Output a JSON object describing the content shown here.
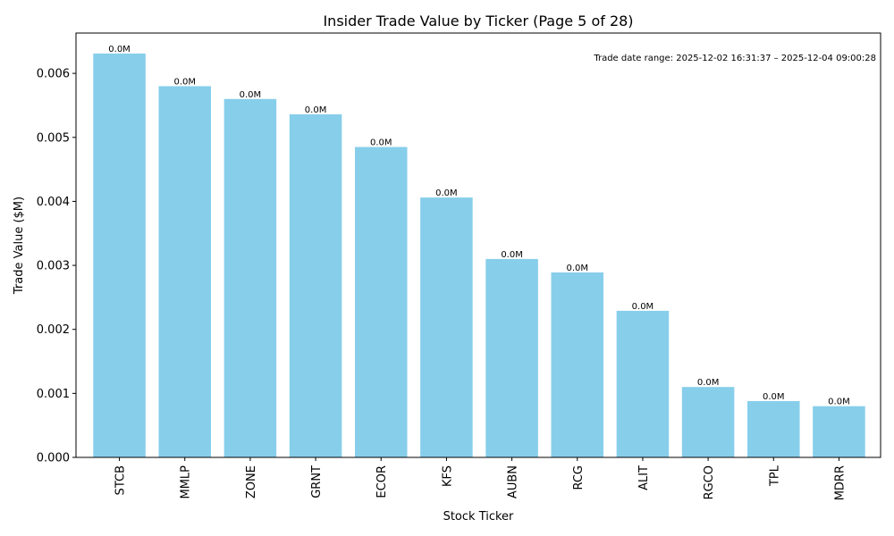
{
  "chart_data": {
    "type": "bar",
    "title": "Insider Trade Value by Ticker (Page 5 of 28)",
    "xlabel": "Stock Ticker",
    "ylabel": "Trade Value ($M)",
    "categories": [
      "STCB",
      "MMLP",
      "ZONE",
      "GRNT",
      "ECOR",
      "KFS",
      "AUBN",
      "RCG",
      "ALIT",
      "RGCO",
      "TPL",
      "MDRR"
    ],
    "values": [
      0.00631,
      0.0058,
      0.0056,
      0.00536,
      0.00485,
      0.00406,
      0.0031,
      0.00289,
      0.00229,
      0.0011,
      0.00088,
      0.0008
    ],
    "data_labels": [
      "0.0M",
      "0.0M",
      "0.0M",
      "0.0M",
      "0.0M",
      "0.0M",
      "0.0M",
      "0.0M",
      "0.0M",
      "0.0M",
      "0.0M",
      "0.0M"
    ],
    "ylim": [
      0,
      0.00663
    ],
    "yticks": [
      0.0,
      0.001,
      0.002,
      0.003,
      0.004,
      0.005,
      0.006
    ],
    "ytick_labels": [
      "0.000",
      "0.001",
      "0.002",
      "0.003",
      "0.004",
      "0.005",
      "0.006"
    ],
    "annotation": "Trade date range: 2025-12-02 16:31:37 – 2025-12-04 09:00:28",
    "bar_color": "#87ceeb",
    "grid": false,
    "legend": "none"
  }
}
